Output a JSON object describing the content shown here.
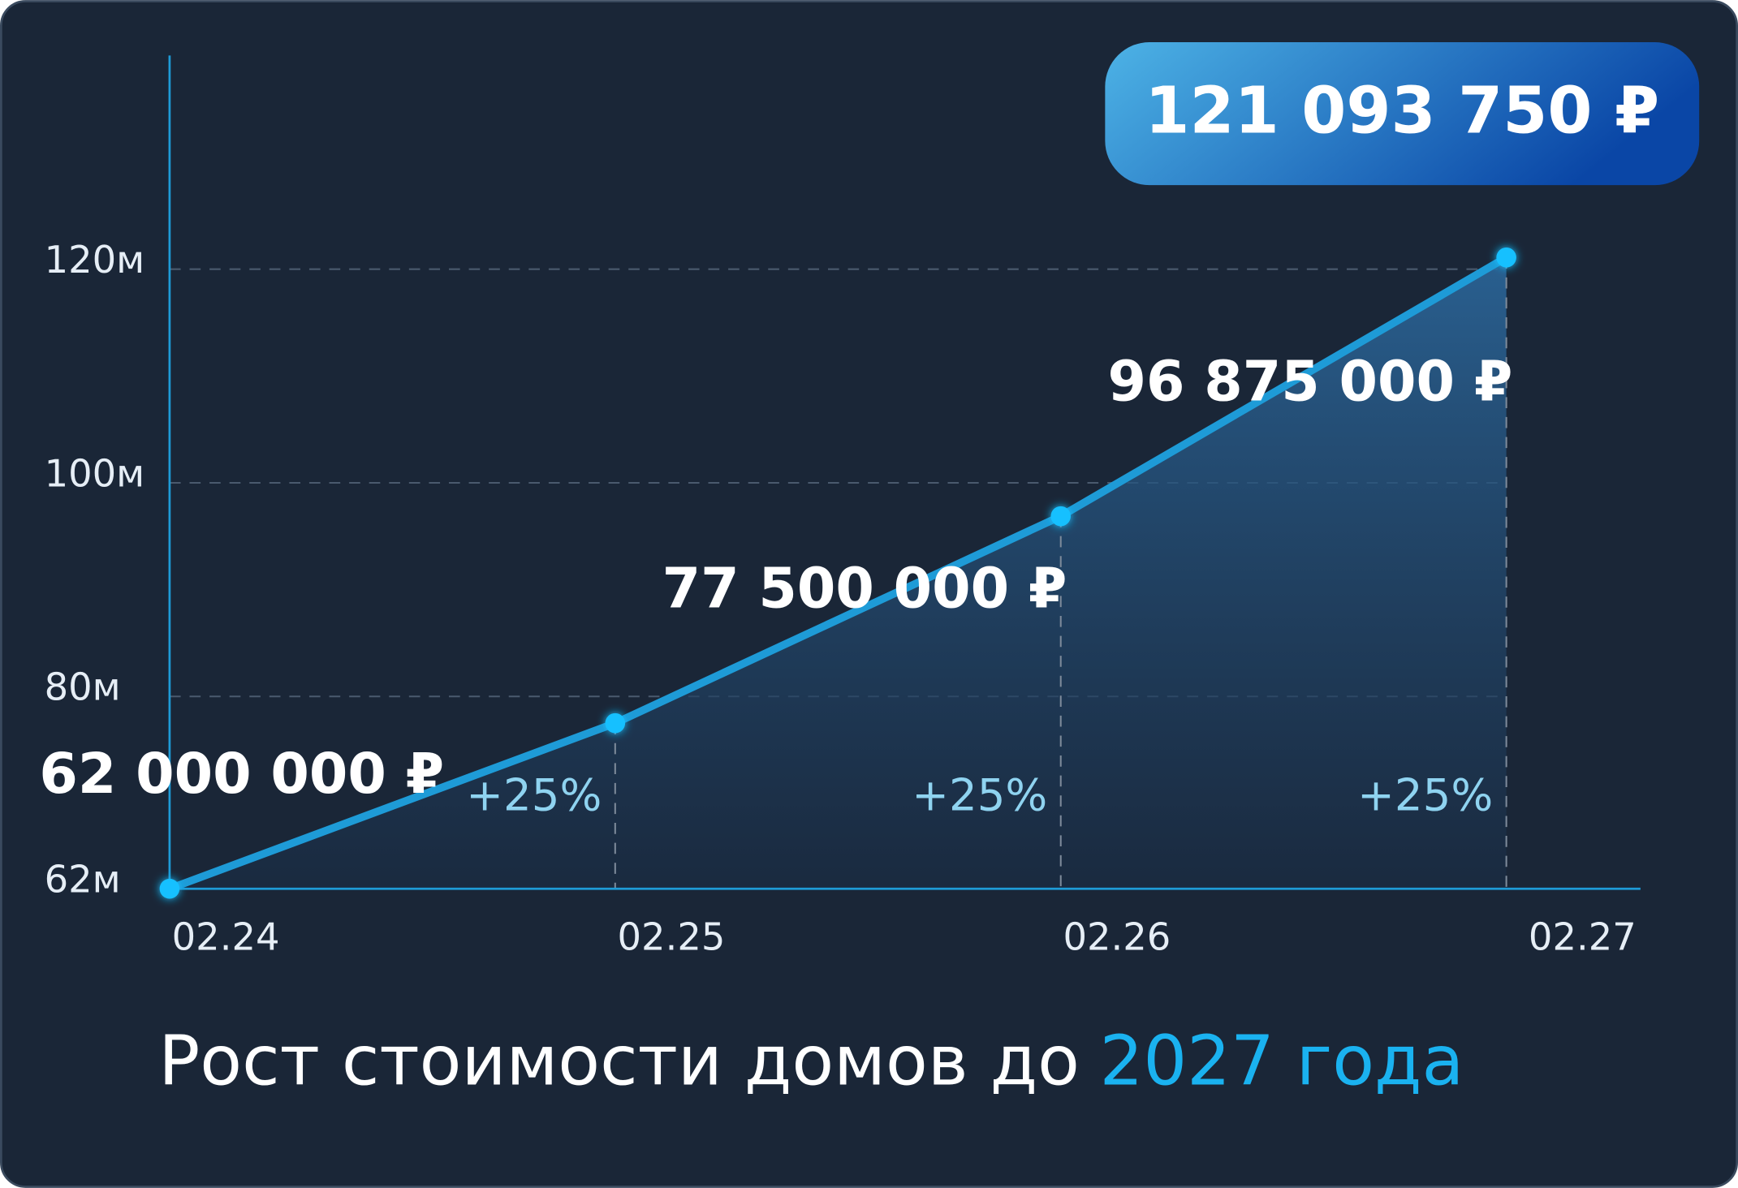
{
  "chart_data": {
    "type": "line",
    "title": "Рост стоимости домов до",
    "title_highlight": "2027 года",
    "categories": [
      "02.24",
      "02.25",
      "02.26",
      "02.27"
    ],
    "values": [
      62000000,
      77500000,
      96875000,
      121093750
    ],
    "value_labels": [
      "62 000 000 ₽",
      "77 500 000 ₽",
      "96 875 000 ₽",
      "121 093 750 ₽"
    ],
    "annotations": [
      "+25%",
      "+25%",
      "+25%"
    ],
    "color": "#1e9bd7",
    "point_color": "#19c0ff",
    "ylim": [
      62000000,
      140000000
    ],
    "yticks": [
      {
        "value": 62000000,
        "label": "62м"
      },
      {
        "value": 80000000,
        "label": "80м"
      },
      {
        "value": 100000000,
        "label": "100м"
      },
      {
        "value": 120000000,
        "label": "120м"
      }
    ],
    "grid": true
  }
}
